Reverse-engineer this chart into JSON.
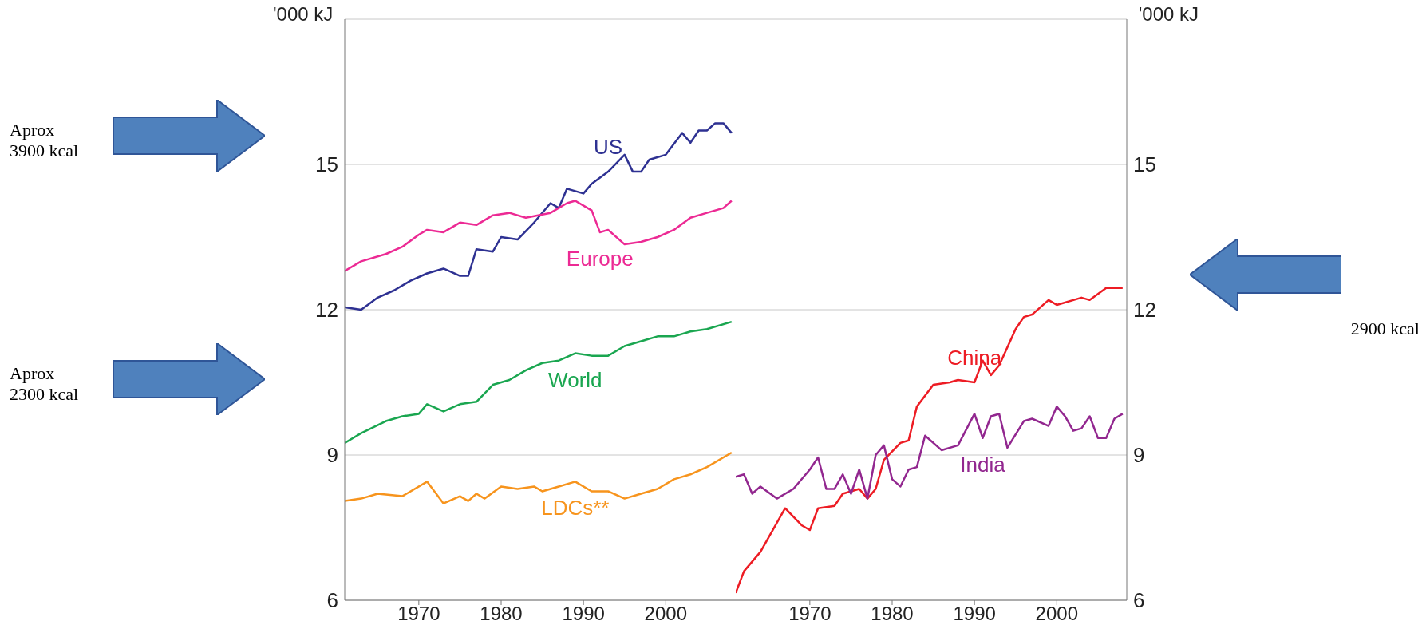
{
  "chart_data": [
    {
      "type": "line",
      "ylabel": "'000 kJ",
      "xlim": [
        1961,
        2008.5
      ],
      "xticks": [
        1970,
        1980,
        1990,
        2000
      ],
      "ylim": [
        6,
        18
      ],
      "yticks": [
        6,
        9,
        12,
        15
      ],
      "grid": "y",
      "annotations": [
        "Aprox\n3900 kcal",
        "Aprox\n2300 kcal"
      ],
      "series": [
        {
          "name": "US",
          "color": "#2e3192",
          "x": [
            1961,
            1963,
            1965,
            1967,
            1969,
            1971,
            1973,
            1975,
            1976,
            1977,
            1979,
            1980,
            1982,
            1984,
            1986,
            1987,
            1988,
            1990,
            1991,
            1993,
            1995,
            1996,
            1997,
            1998,
            2000,
            2002,
            2003,
            2004,
            2005,
            2006,
            2007,
            2008
          ],
          "values": [
            12.05,
            12.0,
            12.25,
            12.4,
            12.6,
            12.75,
            12.85,
            12.7,
            12.7,
            13.25,
            13.2,
            13.5,
            13.45,
            13.8,
            14.2,
            14.1,
            14.5,
            14.4,
            14.6,
            14.85,
            15.2,
            14.85,
            14.85,
            15.1,
            15.2,
            15.65,
            15.45,
            15.7,
            15.7,
            15.85,
            15.85,
            15.65
          ]
        },
        {
          "name": "Europe",
          "color": "#ec2a94",
          "x": [
            1961,
            1963,
            1966,
            1968,
            1970,
            1971,
            1973,
            1975,
            1977,
            1979,
            1981,
            1983,
            1986,
            1988,
            1989,
            1991,
            1992,
            1993,
            1995,
            1997,
            1999,
            2001,
            2003,
            2005,
            2007,
            2008
          ],
          "values": [
            12.8,
            13.0,
            13.15,
            13.3,
            13.55,
            13.65,
            13.6,
            13.8,
            13.75,
            13.95,
            14.0,
            13.9,
            14.0,
            14.2,
            14.25,
            14.05,
            13.6,
            13.65,
            13.35,
            13.4,
            13.5,
            13.65,
            13.9,
            14.0,
            14.1,
            14.25
          ]
        },
        {
          "name": "World",
          "color": "#1aa650",
          "x": [
            1961,
            1963,
            1966,
            1968,
            1970,
            1971,
            1973,
            1975,
            1977,
            1979,
            1981,
            1983,
            1985,
            1987,
            1989,
            1991,
            1993,
            1995,
            1997,
            1999,
            2001,
            2003,
            2005,
            2008
          ],
          "values": [
            9.25,
            9.45,
            9.7,
            9.8,
            9.85,
            10.05,
            9.9,
            10.05,
            10.1,
            10.45,
            10.55,
            10.75,
            10.9,
            10.95,
            11.1,
            11.05,
            11.05,
            11.25,
            11.35,
            11.45,
            11.45,
            11.55,
            11.6,
            11.75
          ]
        },
        {
          "name": "LDCs**",
          "color": "#f7941d",
          "x": [
            1961,
            1963,
            1965,
            1968,
            1971,
            1973,
            1975,
            1976,
            1977,
            1978,
            1980,
            1982,
            1984,
            1985,
            1987,
            1989,
            1991,
            1993,
            1995,
            1997,
            1999,
            2001,
            2003,
            2005,
            2008
          ],
          "values": [
            8.05,
            8.1,
            8.2,
            8.15,
            8.45,
            8.0,
            8.15,
            8.05,
            8.2,
            8.1,
            8.35,
            8.3,
            8.35,
            8.25,
            8.35,
            8.45,
            8.25,
            8.25,
            8.1,
            8.2,
            8.3,
            8.5,
            8.6,
            8.75,
            9.05
          ]
        }
      ]
    },
    {
      "type": "line",
      "ylabel": "'000 kJ",
      "xlim": [
        1961,
        2008.5
      ],
      "xticks": [
        1970,
        1980,
        1990,
        2000
      ],
      "ylim": [
        6,
        18
      ],
      "yticks": [
        6,
        9,
        12,
        15
      ],
      "grid": "y",
      "annotations": [
        "2900 kcal"
      ],
      "series": [
        {
          "name": "China",
          "color": "#ed1c24",
          "x": [
            1961,
            1962,
            1964,
            1966,
            1967,
            1969,
            1970,
            1971,
            1973,
            1974,
            1976,
            1977,
            1978,
            1979,
            1981,
            1982,
            1983,
            1985,
            1987,
            1988,
            1990,
            1991,
            1992,
            1993,
            1995,
            1996,
            1997,
            1999,
            2000,
            2003,
            2004,
            2006,
            2008
          ],
          "values": [
            6.15,
            6.6,
            7.0,
            7.6,
            7.9,
            7.55,
            7.45,
            7.9,
            7.95,
            8.2,
            8.3,
            8.1,
            8.3,
            8.9,
            9.25,
            9.3,
            10.0,
            10.45,
            10.5,
            10.55,
            10.5,
            10.95,
            10.65,
            10.85,
            11.6,
            11.85,
            11.9,
            12.2,
            12.1,
            12.25,
            12.2,
            12.45,
            12.45
          ]
        },
        {
          "name": "India",
          "color": "#92278f",
          "x": [
            1961,
            1962,
            1963,
            1964,
            1966,
            1968,
            1970,
            1971,
            1972,
            1973,
            1974,
            1975,
            1976,
            1977,
            1978,
            1979,
            1980,
            1981,
            1982,
            1983,
            1984,
            1986,
            1988,
            1990,
            1991,
            1992,
            1993,
            1994,
            1996,
            1997,
            1999,
            2000,
            2001,
            2002,
            2003,
            2004,
            2005,
            2006,
            2007,
            2008
          ],
          "values": [
            8.55,
            8.6,
            8.2,
            8.35,
            8.1,
            8.3,
            8.7,
            8.95,
            8.3,
            8.3,
            8.6,
            8.2,
            8.7,
            8.1,
            9.0,
            9.2,
            8.5,
            8.35,
            8.7,
            8.75,
            9.4,
            9.1,
            9.2,
            9.85,
            9.35,
            9.8,
            9.85,
            9.15,
            9.7,
            9.75,
            9.6,
            10.0,
            9.8,
            9.5,
            9.55,
            9.8,
            9.35,
            9.35,
            9.75,
            9.85
          ]
        }
      ]
    }
  ]
}
